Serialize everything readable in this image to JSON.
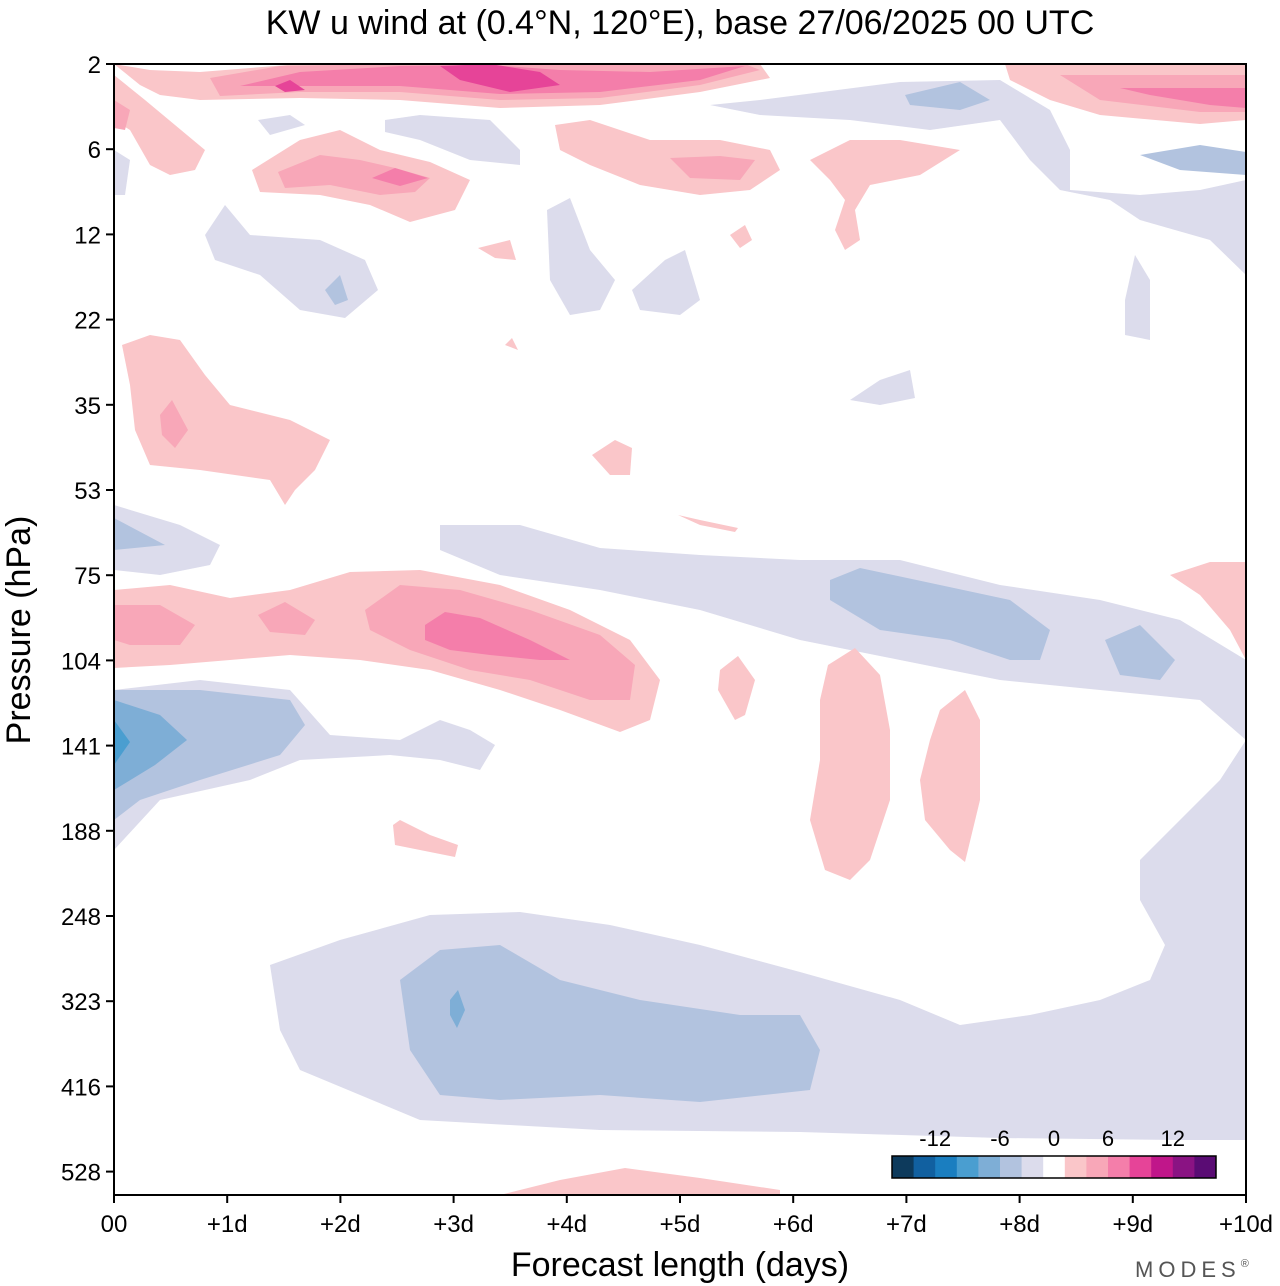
{
  "chart_data": {
    "type": "heatmap",
    "title": "KW u wind at (0.4°N, 120°E),  base 27/06/2025  00 UTC",
    "xlabel": "Forecast length (days)",
    "ylabel": "Pressure (hPa)",
    "x_ticks": [
      "00",
      "+1d",
      "+2d",
      "+3d",
      "+4d",
      "+5d",
      "+6d",
      "+7d",
      "+8d",
      "+9d",
      "+10d"
    ],
    "x_range_days": [
      0,
      10
    ],
    "y_ticks": [
      "2",
      "6",
      "12",
      "22",
      "35",
      "53",
      "75",
      "104",
      "141",
      "188",
      "248",
      "323",
      "416",
      "528"
    ],
    "y_scale": "log",
    "colorbar": {
      "tick_labels": [
        "-12",
        "-6",
        "0",
        "6",
        "12"
      ],
      "levels": [
        -16,
        -14,
        -12,
        -10,
        -8,
        -6,
        -4,
        -2,
        2,
        4,
        6,
        8,
        10,
        12,
        14,
        16
      ],
      "colors": [
        "#0d3a5c",
        "#1160a0",
        "#1a7ec0",
        "#4a9ed0",
        "#7eaed6",
        "#b2c3df",
        "#dcdcec",
        "#ffffff",
        "#fac6c9",
        "#f8a7b8",
        "#f47eaa",
        "#e64498",
        "#c0168a",
        "#8a1383",
        "#5a0c74"
      ]
    },
    "features": [
      {
        "level": 4,
        "x_days": [
          1.5,
          4.8
        ],
        "p_hPa": [
          2,
          3
        ],
        "peak": 10
      },
      {
        "level": 4,
        "x_days": [
          2.6,
          4.5
        ],
        "p_hPa": [
          80,
          110
        ],
        "peak": 8
      },
      {
        "level": 2,
        "x_days": [
          0,
          4.8
        ],
        "p_hPa": [
          70,
          125
        ]
      },
      {
        "level": -4,
        "x_days": [
          0,
          1.7
        ],
        "p_hPa": [
          115,
          180
        ],
        "peak": -8
      },
      {
        "level": -4,
        "x_days": [
          2.5,
          6.2
        ],
        "p_hPa": [
          270,
          440
        ],
        "peak": -6
      },
      {
        "level": -4,
        "x_days": [
          6.3,
          8.1
        ],
        "p_hPa": [
          75,
          105
        ]
      },
      {
        "level": -2,
        "x_days": [
          1.4,
          10
        ],
        "p_hPa": [
          240,
          560
        ]
      },
      {
        "level": 2,
        "x_days": [
          6.1,
          6.8
        ],
        "p_hPa": [
          105,
          250
        ]
      },
      {
        "level": 2,
        "x_days": [
          7.1,
          7.6
        ],
        "p_hPa": [
          125,
          240
        ]
      },
      {
        "level": 2,
        "x_days": [
          0,
          1.9
        ],
        "p_hPa": [
          22,
          55
        ]
      }
    ],
    "grid": false,
    "legend": "bottom-right colorbar"
  },
  "brand": "MODES",
  "brand_mark": "®"
}
